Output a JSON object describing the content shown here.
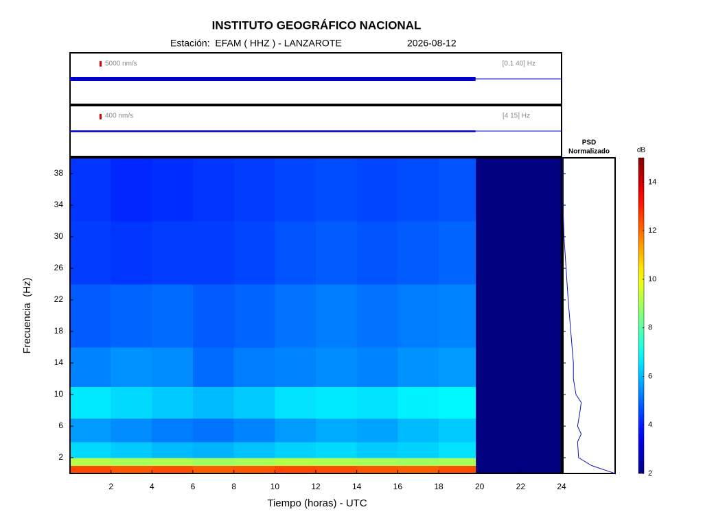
{
  "chart_data": {
    "type": "spectrogram",
    "title": "INSTITUTO GEOGRÁFICO NACIONAL",
    "subtitle": "Estación:  EFAM ( HHZ ) - LANZAROTE",
    "date": "2026-08-12",
    "traces": [
      {
        "scale": "5000 nm/s",
        "band": "[0.1 40] Hz",
        "color": "#0000cc"
      },
      {
        "scale": "400 nm/s",
        "band": "[4 15] Hz",
        "color": "#0000cc"
      }
    ],
    "xlabel": "Tiempo (horas) - UTC",
    "ylabel": "Frecuencia  (Hz)",
    "xlim": [
      0,
      24
    ],
    "xticks": [
      2,
      4,
      6,
      8,
      10,
      12,
      14,
      16,
      18,
      20,
      22,
      24
    ],
    "ylim": [
      0,
      40
    ],
    "yticks": [
      2,
      6,
      10,
      14,
      18,
      22,
      26,
      30,
      34,
      38
    ],
    "time_bins": [
      0,
      2,
      4,
      6,
      8,
      10,
      12,
      14,
      16,
      18,
      19.8
    ],
    "frequency_bins": [
      0,
      1,
      2,
      4,
      7,
      11,
      16,
      24,
      32,
      40
    ],
    "z": [
      [
        12.5,
        12.3,
        12.4,
        12.2,
        12.3,
        12.5,
        12.4,
        12.3,
        12.2,
        12.4
      ],
      [
        9.2,
        9.0,
        9.1,
        8.9,
        9.0,
        9.2,
        9.1,
        9.0,
        8.9,
        9.0
      ],
      [
        6.4,
        6.2,
        6.0,
        5.9,
        6.1,
        6.3,
        6.4,
        6.2,
        6.3,
        6.5
      ],
      [
        5.6,
        5.4,
        5.2,
        5.1,
        5.3,
        5.6,
        5.8,
        5.7,
        6.0,
        6.2
      ],
      [
        6.6,
        6.4,
        6.2,
        6.0,
        6.2,
        6.5,
        6.6,
        6.5,
        6.7,
        6.8
      ],
      [
        5.3,
        5.5,
        5.4,
        5.0,
        5.2,
        5.3,
        5.4,
        5.3,
        5.5,
        5.6
      ],
      [
        4.8,
        4.9,
        5.0,
        4.8,
        4.9,
        5.1,
        5.2,
        5.1,
        5.2,
        5.3
      ],
      [
        4.4,
        4.3,
        4.4,
        4.4,
        4.5,
        4.7,
        4.8,
        4.7,
        4.8,
        4.9
      ],
      [
        4.3,
        4.1,
        4.2,
        4.3,
        4.4,
        4.5,
        4.6,
        4.5,
        4.6,
        4.7
      ]
    ],
    "colormap": "jet",
    "psd_title": [
      "PSD",
      "Normalizado"
    ],
    "psd_frequency": [
      0,
      1,
      2,
      4,
      5,
      6,
      8,
      9,
      10,
      12,
      14,
      18,
      22,
      26,
      30,
      34,
      40
    ],
    "psd_values": [
      1,
      0.55,
      0.3,
      0.28,
      0.35,
      0.28,
      0.33,
      0.35,
      0.25,
      0.2,
      0.2,
      0.15,
      0.1,
      0.06,
      0.02,
      0,
      0
    ],
    "psd_xlim": [
      0,
      1
    ],
    "colorbar": {
      "label": "dB",
      "lim": [
        2,
        15
      ],
      "ticks": [
        2,
        4,
        6,
        8,
        10,
        12,
        14
      ]
    }
  }
}
